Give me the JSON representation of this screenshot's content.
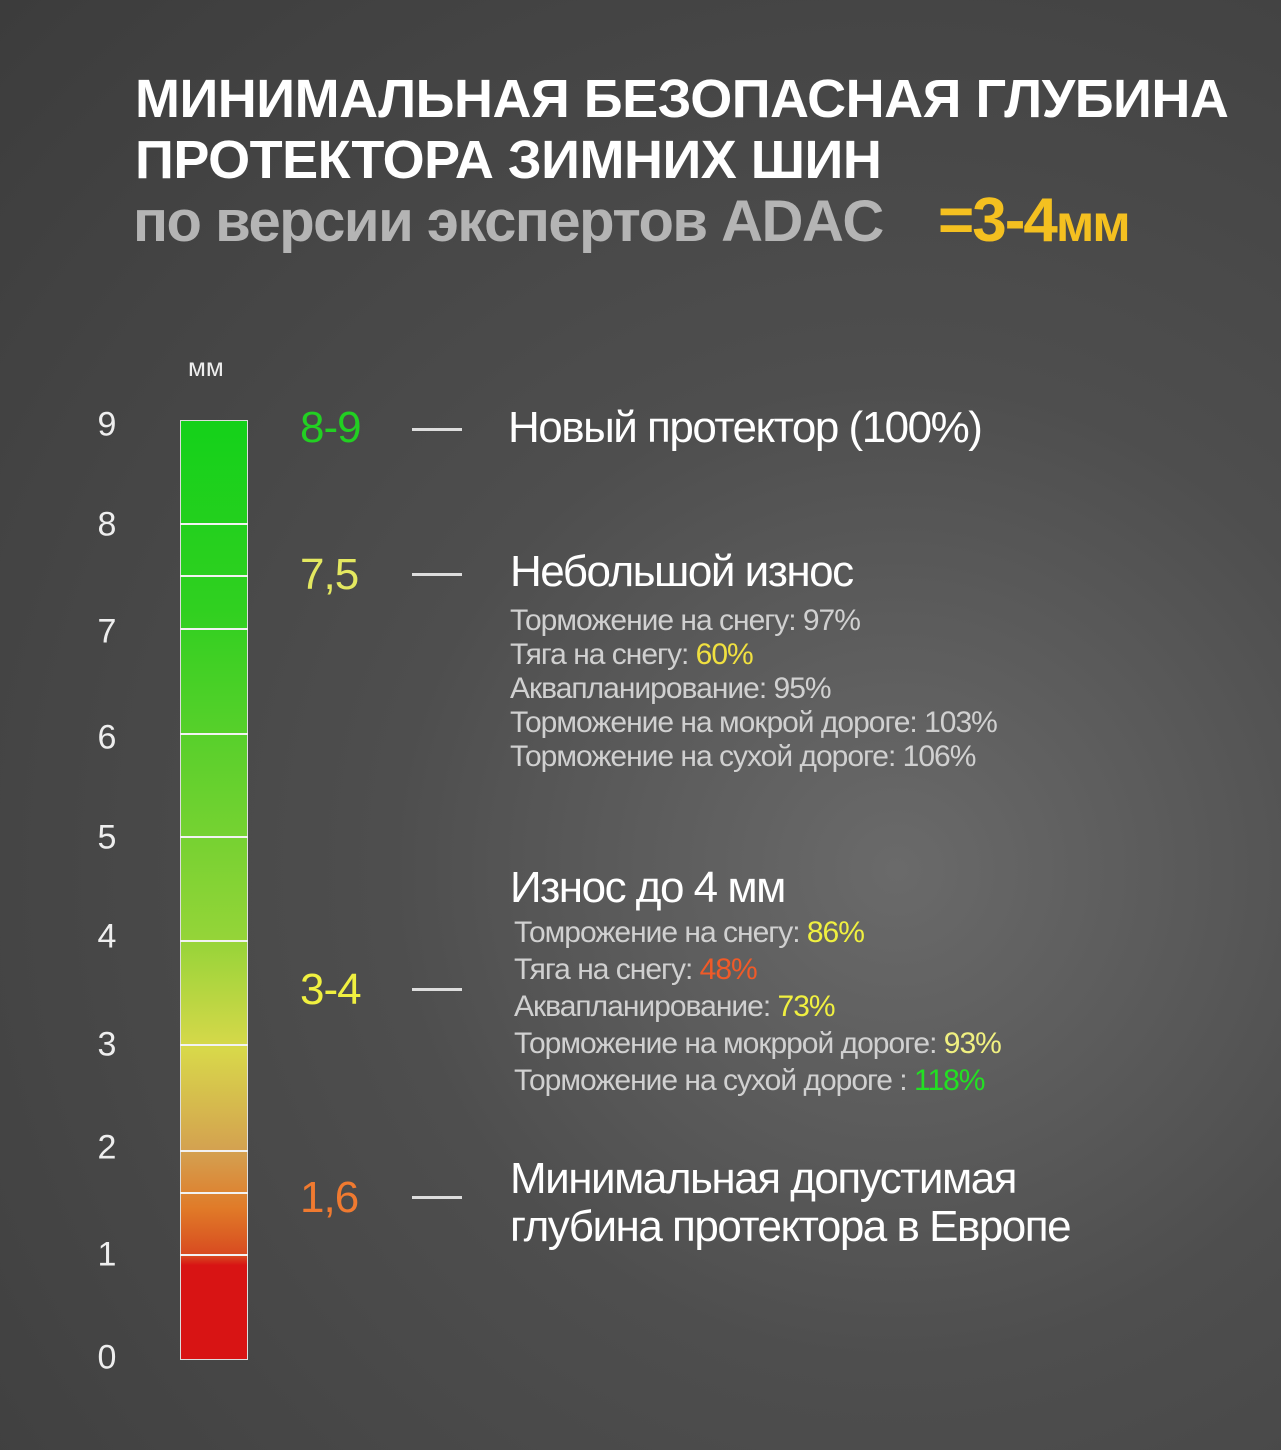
{
  "title": {
    "line1": "МИНИМАЛЬНАЯ БЕЗОПАСНАЯ ГЛУБИНА",
    "line2": "ПРОТЕКТОРА ЗИМНИХ ШИН",
    "line3": "по версии экспертов ADAC",
    "result_eq": "=",
    "result_value": "3-4",
    "result_unit": "мм"
  },
  "colors": {
    "accent": "#f4c020",
    "green": "#22d022",
    "yellow": "#e8e850",
    "orange": "#f07a30",
    "red": "#d81414"
  },
  "scale": {
    "unit": "мм",
    "ticks": [
      "9",
      "8",
      "7",
      "6",
      "5",
      "4",
      "3",
      "2",
      "1",
      "0"
    ],
    "range": [
      0,
      9
    ]
  },
  "levels": [
    {
      "value": "8-9",
      "color": "#22d022",
      "heading": "Новый протектор (100%)",
      "stats": []
    },
    {
      "value": "7,5",
      "color": "#e4e860",
      "heading": "Небольшой износ",
      "stats": [
        {
          "label": "Торможение на снегу: ",
          "value": "97%",
          "color": "#d0d0d0"
        },
        {
          "label": "Тяга на снегу: ",
          "value": "60%",
          "color": "#f0e040"
        },
        {
          "label": "Аквапланирование: ",
          "value": "95%",
          "color": "#d0d0d0"
        },
        {
          "label": "Торможение на мокрой дороге: ",
          "value": "103%",
          "color": "#d0d0d0"
        },
        {
          "label": "Торможение на сухой дороге: ",
          "value": "106%",
          "color": "#d0d0d0"
        }
      ]
    },
    {
      "value": "3-4",
      "color": "#f0f040",
      "heading": "Износ до 4 мм",
      "stats": [
        {
          "label": "Томрожение на снегу: ",
          "value": "86%",
          "color": "#f0f040"
        },
        {
          "label": "Тяга на снегу: ",
          "value": "48%",
          "color": "#f05a28"
        },
        {
          "label": "Аквапланирование: ",
          "value": "73%",
          "color": "#f0f040"
        },
        {
          "label": "Торможение на мокррой дороге: ",
          "value": "93%",
          "color": "#f0f080"
        },
        {
          "label": "Торможение на сухой дороге : ",
          "value": "118%",
          "color": "#22e022"
        }
      ]
    },
    {
      "value": "1,6",
      "color": "#f07a30",
      "heading": "Минимальная допустимая",
      "heading2": "глубина протектора в Европе",
      "stats": []
    }
  ]
}
